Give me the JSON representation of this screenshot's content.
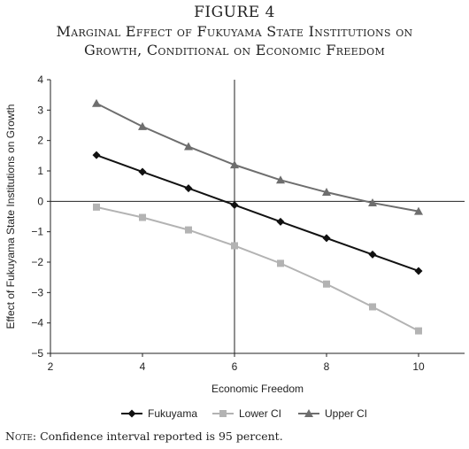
{
  "figure": {
    "label": "FIGURE 4",
    "title_line1": "Marginal Effect of Fukuyama State Institutions on",
    "title_line2": "Growth, Conditional on Economic Freedom"
  },
  "note": {
    "lead": "Note:",
    "text": " Confidence interval reported is 95 percent."
  },
  "colors": {
    "Fukuyama": "#111111",
    "Lower CI": "#b3b3b3",
    "Upper CI": "#6e6e6e"
  },
  "chart_data": {
    "type": "line",
    "title": "",
    "xlabel": "Economic Freedom",
    "ylabel": "Effect of Fukuyama State Institutions on Growth",
    "xlim": [
      2,
      11
    ],
    "ylim": [
      -5,
      4
    ],
    "xticks": [
      2,
      4,
      6,
      8,
      10
    ],
    "yticks": [
      -5,
      -4,
      -3,
      -2,
      -1,
      0,
      1,
      2,
      3,
      4
    ],
    "x": [
      3,
      4,
      5,
      6,
      7,
      8,
      9,
      10
    ],
    "reference_lines": {
      "x": 6,
      "y": 0
    },
    "legend_position": "bottom",
    "series": [
      {
        "name": "Fukuyama",
        "marker": "diamond",
        "values": [
          1.52,
          0.97,
          0.43,
          -0.12,
          -0.67,
          -1.21,
          -1.75,
          -2.29
        ]
      },
      {
        "name": "Lower CI",
        "marker": "square",
        "values": [
          -0.19,
          -0.53,
          -0.94,
          -1.46,
          -2.04,
          -2.72,
          -3.47,
          -4.26
        ]
      },
      {
        "name": "Upper CI",
        "marker": "triangle",
        "values": [
          3.22,
          2.46,
          1.8,
          1.2,
          0.7,
          0.3,
          -0.05,
          -0.33
        ]
      }
    ]
  }
}
